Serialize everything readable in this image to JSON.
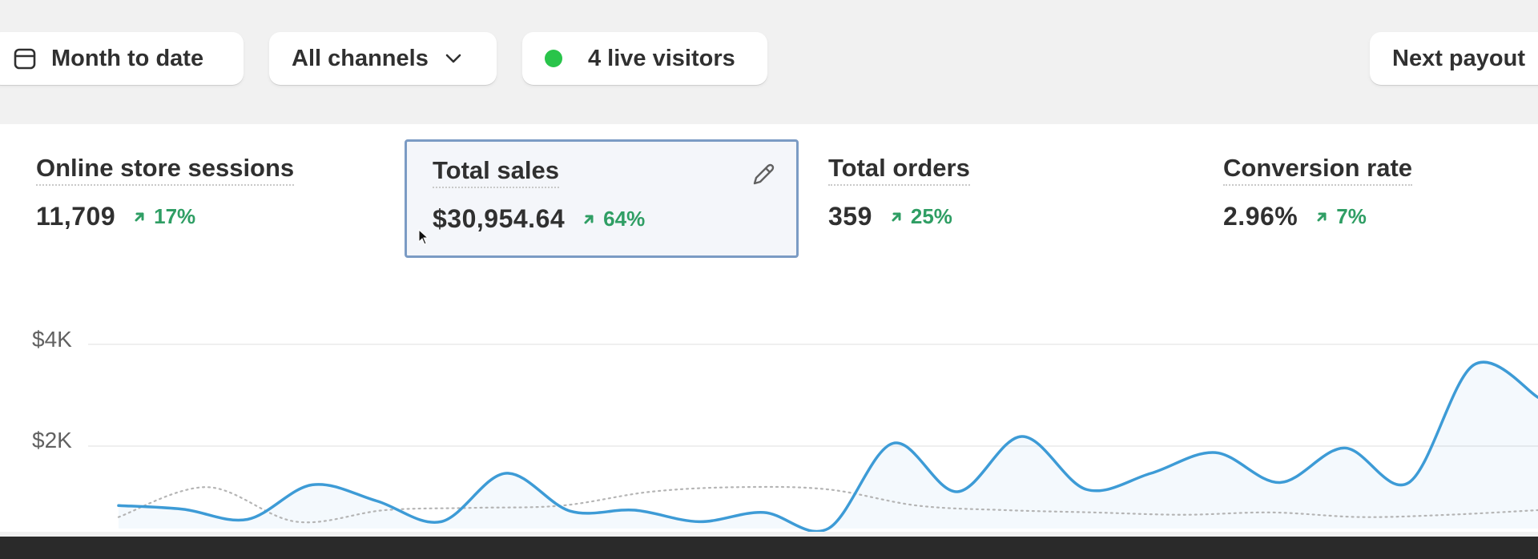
{
  "filters": {
    "date_label": "Month to date",
    "channels_label": "All channels",
    "live_label": "4 live visitors",
    "payout_label": "Next payout"
  },
  "metrics": [
    {
      "label": "Online store sessions",
      "value": "11,709",
      "delta": "17%"
    },
    {
      "label": "Total sales",
      "value": "$30,954.64",
      "delta": "64%"
    },
    {
      "label": "Total orders",
      "value": "359",
      "delta": "25%"
    },
    {
      "label": "Conversion rate",
      "value": "2.96%",
      "delta": "7%"
    }
  ],
  "icons": {
    "date": "calendar-icon",
    "channels": "chevron-down-icon",
    "live": "live-dot-icon",
    "edit": "pencil-icon",
    "trend": "arrow-up-right-icon"
  },
  "colors": {
    "positive": "#2f9e64",
    "live": "#29c44a",
    "series_current": "#3d9bd6",
    "series_previous": "#b5b5b5",
    "selected_border": "#7b9bc4"
  },
  "chart_data": {
    "type": "line",
    "y_ticks": [
      "$4K",
      "$2K"
    ],
    "ylim": [
      0,
      4000
    ],
    "series": [
      {
        "style": "solid",
        "values": [
          500,
          420,
          200,
          950,
          600,
          150,
          1200,
          380,
          400,
          150,
          350,
          0,
          1850,
          800,
          2000,
          850,
          1200,
          1650,
          1000,
          1750,
          1000,
          3550,
          2850
        ]
      },
      {
        "style": "dotted",
        "values": [
          250,
          900,
          150,
          400,
          450,
          500,
          800,
          900,
          850,
          500,
          400,
          350,
          300,
          350,
          250,
          300,
          400
        ]
      }
    ]
  }
}
